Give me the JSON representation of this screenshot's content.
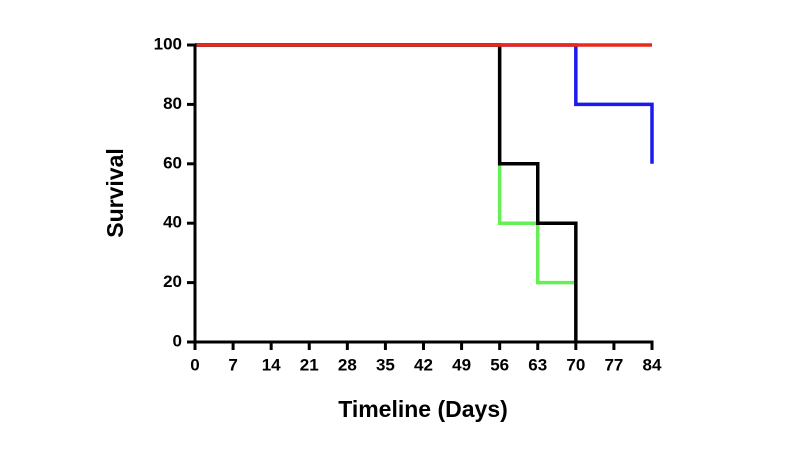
{
  "chart_data": {
    "type": "step",
    "x_label": "Timeline (Days)",
    "y_label": "Survival",
    "xlim": [
      0,
      84
    ],
    "ylim": [
      0,
      100
    ],
    "xticks": [
      0,
      7,
      14,
      21,
      28,
      35,
      42,
      49,
      56,
      63,
      70,
      77,
      84
    ],
    "yticks": [
      0,
      20,
      40,
      60,
      80,
      100
    ],
    "series": [
      {
        "color": "#66ee55",
        "x": [
          0,
          56,
          63,
          70
        ],
        "values": [
          100,
          40,
          20,
          20
        ]
      },
      {
        "color": "#1a1aee",
        "x": [
          0,
          70,
          84
        ],
        "values": [
          100,
          80,
          60
        ]
      },
      {
        "color": "#000000",
        "x": [
          0,
          56,
          63,
          70
        ],
        "values": [
          100,
          60,
          40,
          0
        ]
      },
      {
        "color": "#e8291c",
        "x": [
          0,
          84
        ],
        "values": [
          100,
          100
        ]
      }
    ]
  }
}
